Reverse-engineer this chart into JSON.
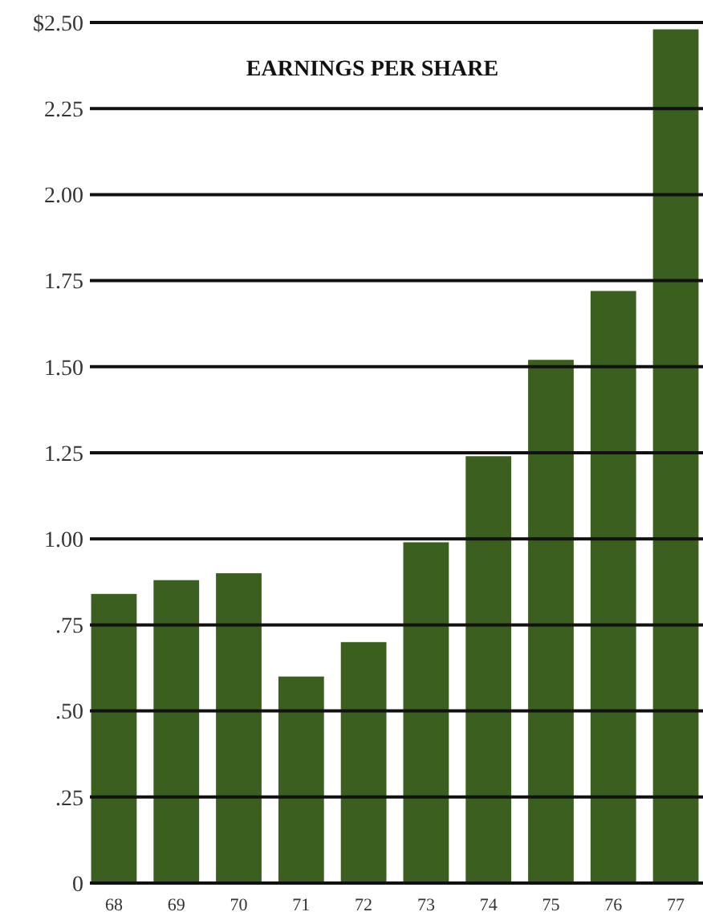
{
  "chart_data": {
    "type": "bar",
    "title": "EARNINGS PER SHARE",
    "categories": [
      "68",
      "69",
      "70",
      "71",
      "72",
      "73",
      "74",
      "75",
      "76",
      "77"
    ],
    "values": [
      0.84,
      0.88,
      0.9,
      0.6,
      0.7,
      0.99,
      1.24,
      1.52,
      1.72,
      2.48
    ],
    "color": "#3a5f1e",
    "ylim": [
      0,
      2.5
    ],
    "yticks": [
      0,
      {
        "value": 0.25,
        "label": ".25"
      },
      {
        "value": 0.5,
        "label": ".50"
      },
      {
        "value": 0.75,
        "label": ".75"
      },
      {
        "value": 1,
        "label": "1.00"
      },
      {
        "value": 1.25,
        "label": "1.25"
      },
      {
        "value": 1.5,
        "label": "1.50"
      },
      {
        "value": 1.75,
        "label": "1.75"
      },
      {
        "value": 2,
        "label": "2.00"
      },
      {
        "value": 2.25,
        "label": "2.25"
      },
      {
        "value": 2.5,
        "label": "$2.50"
      }
    ],
    "grid": "y"
  }
}
